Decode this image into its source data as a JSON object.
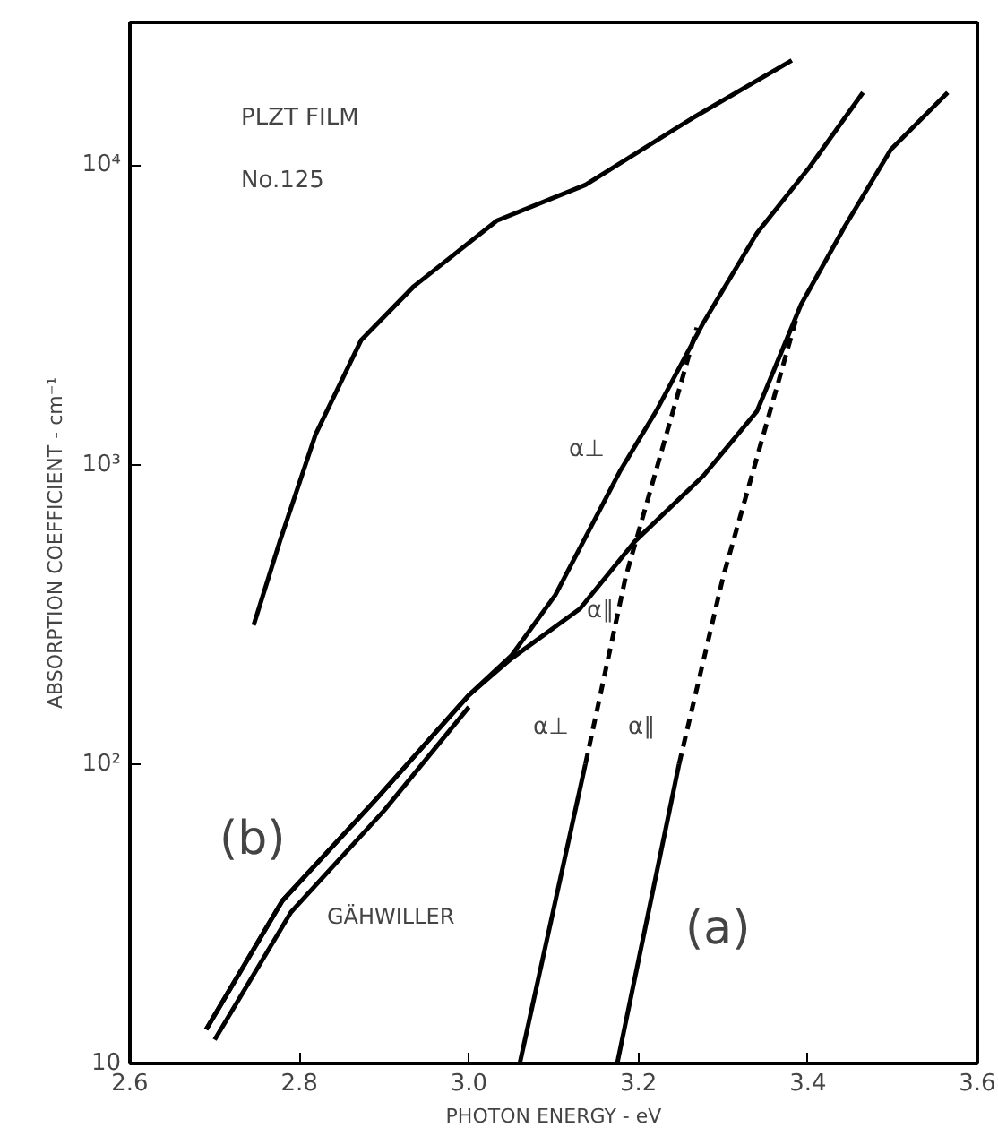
{
  "chart_data": {
    "type": "line",
    "xlabel": "PHOTON ENERGY - eV",
    "ylabel": "ABSORPTION COEFFICIENT - cm⁻¹",
    "log": "y",
    "grid": false,
    "marker": "none",
    "xlim": [
      2.6,
      3.6
    ],
    "xticks": [
      2.6,
      2.8,
      {
        "value": 3.0,
        "label": "3.0"
      },
      3.2,
      3.4,
      3.6
    ],
    "ylim": [
      10,
      30000
    ],
    "yticks": [
      10,
      {
        "value": 100,
        "label": "10²"
      },
      {
        "value": 1000,
        "label": "10³"
      },
      {
        "value": 10000,
        "label": "10⁴"
      }
    ],
    "series": [
      {
        "color": "#000000",
        "line_style": "solid",
        "x": [
          2.746,
          2.777,
          2.819,
          2.873,
          2.935,
          3.033,
          3.1375,
          3.2625,
          3.381
        ],
        "values": [
          291,
          555,
          1260,
          2610,
          3940,
          6530,
          8600,
          14300,
          22400
        ]
      },
      {
        "color": "#000000",
        "line_style": "solid",
        "x": [
          2.69,
          2.78,
          2.89,
          3.0,
          3.05,
          3.102,
          3.179,
          3.221,
          3.277,
          3.34,
          3.402,
          3.465
        ],
        "values": [
          13,
          35,
          76,
          170,
          230,
          367,
          959,
          1510,
          2990,
          5940,
          9860,
          17500
        ]
      },
      {
        "color": "#000000",
        "line_style": "solid",
        "x": [
          2.69,
          2.78,
          2.89,
          3.0,
          3.05,
          3.131,
          3.196,
          3.277,
          3.34,
          3.392,
          3.444,
          3.498,
          3.565
        ],
        "values": [
          13,
          35,
          76,
          170,
          225,
          330,
          555,
          920,
          1510,
          3430,
          6280,
          11300,
          17500
        ]
      },
      {
        "color": "#000000",
        "line_style": "solid",
        "x": [
          2.7,
          2.79,
          2.9,
          3.0
        ],
        "values": [
          12,
          32,
          70,
          155
        ]
      },
      {
        "color": "#000000",
        "line_style": "solid",
        "x": [
          3.06,
          3.1375
        ],
        "values": [
          10,
          100
        ]
      },
      {
        "color": "#000000",
        "line_style": "dashed",
        "x": [
          3.1375,
          3.185,
          3.269
        ],
        "values": [
          100,
          422,
          2870
        ]
      },
      {
        "color": "#000000",
        "line_style": "solid",
        "x": [
          3.175,
          3.248
        ],
        "values": [
          10,
          100
        ]
      },
      {
        "color": "#000000",
        "line_style": "dashed",
        "x": [
          3.248,
          3.3,
          3.3875
        ],
        "values": [
          100,
          422,
          3160
        ]
      }
    ],
    "annotations": [
      "PLZT FILM",
      "No.125",
      "α⊥",
      "α∥",
      "α⊥",
      "α∥",
      "(b)",
      "(a)",
      "GÄHWILLER"
    ]
  }
}
